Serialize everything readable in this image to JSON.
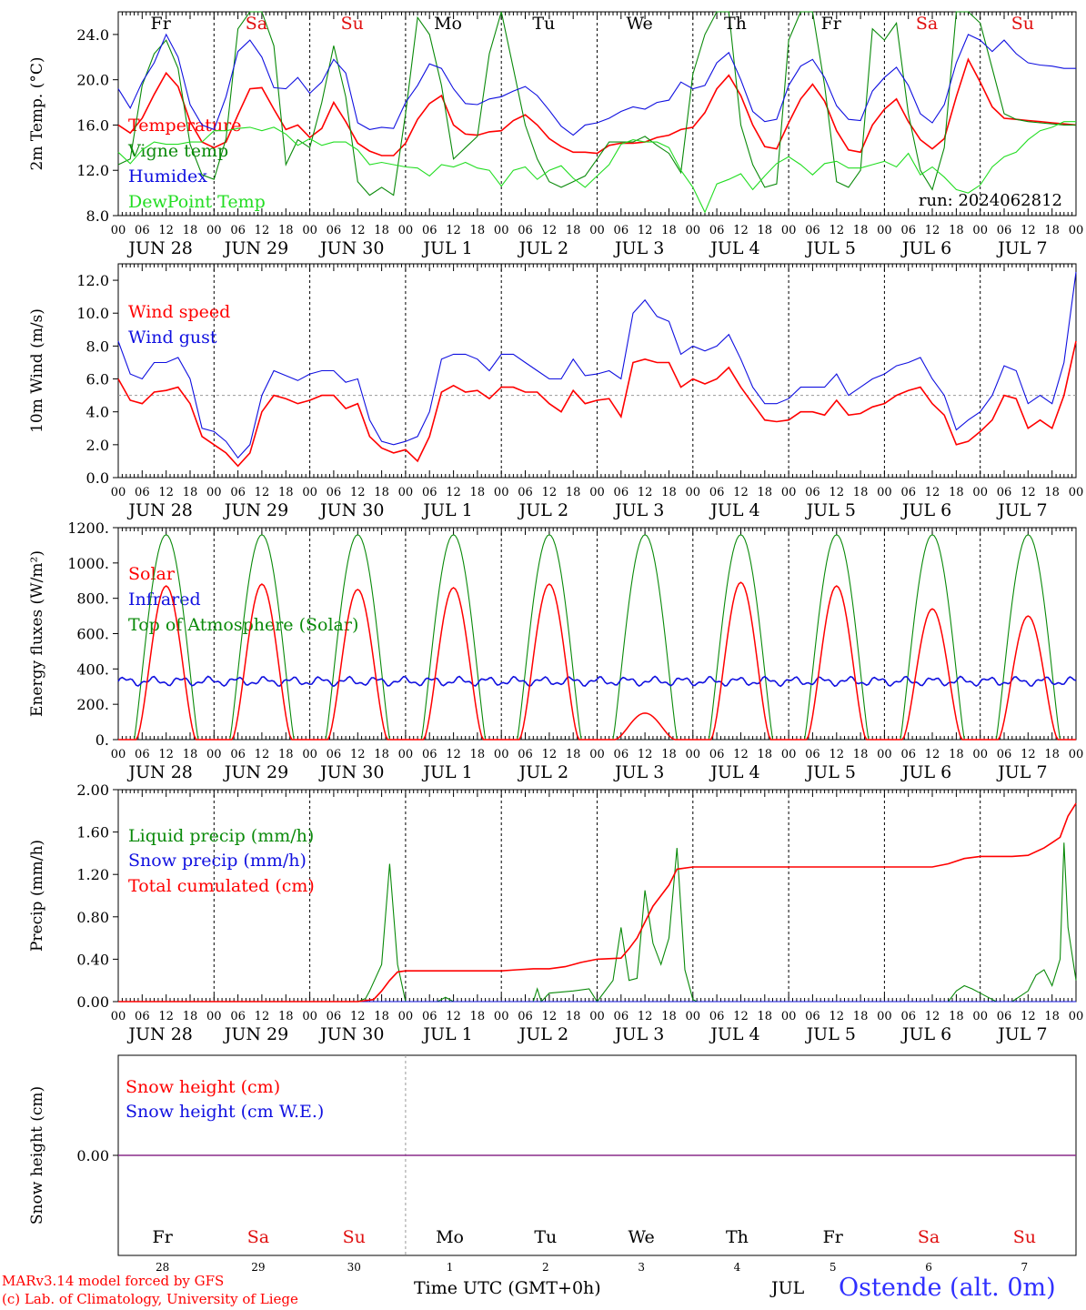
{
  "days": [
    "JUN 28",
    "JUN 29",
    "JUN 30",
    "JUL  1",
    "JUL  2",
    "JUL  3",
    "JUL  4",
    "JUL  5",
    "JUL  6",
    "JUL  7"
  ],
  "weekdays": [
    "Fr",
    "Sa",
    "Su",
    "Mo",
    "Tu",
    "We",
    "Th",
    "Fr",
    "Sa",
    "Su"
  ],
  "weekend_flags": [
    false,
    true,
    true,
    false,
    false,
    false,
    false,
    false,
    true,
    true
  ],
  "hour_labels": [
    "00",
    "06",
    "12",
    "18"
  ],
  "last_hour_label": "00",
  "colors": {
    "weekday": "#000000",
    "weekend": "#e01010",
    "red": "#ff0000",
    "green": "#0a8a0a",
    "blue": "#1010e0",
    "lightgreen": "#22dd22",
    "purple": "#8a2b8a"
  },
  "bottom": {
    "day_numbers": [
      "28",
      "29",
      "30",
      "1",
      "2",
      "3",
      "4",
      "5",
      "6",
      "7"
    ],
    "axis_title": "Time UTC (GMT+0h)",
    "month": "JUL",
    "station": "Ostende (alt. 0m)",
    "credit1": "MARv3.14 model forced by GFS",
    "credit2": "(c) Lab. of Climatology, University of Liege"
  },
  "chart_data": [
    {
      "id": "temp",
      "type": "line",
      "ylabel": "2m Temp. (°C)",
      "ylim": [
        8,
        26
      ],
      "yticks": [
        8,
        12,
        16,
        20,
        24
      ],
      "ytick_labels": [
        "8.0",
        "12.0",
        "16.0",
        "20.0",
        "24.0"
      ],
      "annotation": "run: 2024062812",
      "x_hours": [
        0,
        3,
        6,
        9,
        12,
        15,
        18,
        21,
        24,
        27,
        30,
        33,
        36,
        39,
        42,
        45,
        48,
        51,
        54,
        57,
        60,
        63,
        66,
        69,
        72,
        75,
        78,
        81,
        84,
        87,
        90,
        93,
        96,
        99,
        102,
        105,
        108,
        111,
        114,
        117,
        120,
        123,
        126,
        129,
        132,
        135,
        138,
        141,
        144,
        147,
        150,
        153,
        156,
        159,
        162,
        165,
        168,
        171,
        174,
        177,
        180,
        183,
        186,
        189,
        192,
        195,
        198,
        201,
        204,
        207,
        210,
        213,
        216,
        219,
        222,
        225,
        228,
        231,
        234,
        237,
        240
      ],
      "series": [
        {
          "name": "Temperature",
          "color": "#ff0000",
          "values": [
            16.0,
            15.3,
            16.6,
            18.7,
            20.6,
            19.4,
            16.3,
            14.5,
            14.0,
            14.5,
            16.9,
            19.2,
            19.3,
            17.4,
            15.6,
            16.0,
            14.9,
            15.7,
            18.0,
            16.3,
            14.4,
            13.7,
            13.3,
            13.3,
            14.4,
            16.5,
            17.9,
            18.6,
            16.0,
            15.2,
            15.1,
            15.4,
            15.5,
            16.4,
            16.9,
            16.0,
            14.8,
            14.1,
            13.6,
            13.6,
            13.5,
            14.2,
            14.4,
            14.4,
            14.5,
            14.9,
            15.1,
            15.6,
            15.8,
            17.1,
            19.2,
            20.4,
            18.6,
            16.0,
            14.1,
            13.9,
            16.2,
            18.3,
            19.6,
            18.1,
            15.5,
            13.8,
            13.6,
            16.0,
            17.4,
            18.3,
            16.3,
            14.7,
            13.9,
            14.8,
            18.5,
            21.8,
            19.8,
            17.6,
            16.6,
            16.5,
            16.4,
            16.3,
            16.2,
            16.1,
            16.0
          ]
        },
        {
          "name": "Vigne temp",
          "color": "#0a8a0a",
          "values": [
            12.5,
            13.0,
            19.5,
            22.3,
            23.5,
            21.0,
            14.3,
            11.6,
            11.2,
            14.8,
            24.5,
            26.5,
            26.0,
            23.0,
            12.5,
            14.7,
            14.0,
            18.0,
            23.0,
            18.5,
            11.0,
            9.8,
            10.5,
            9.8,
            17.0,
            25.5,
            24.0,
            19.5,
            13.0,
            14.0,
            15.0,
            22.3,
            27.0,
            21.0,
            16.0,
            13.0,
            11.0,
            10.5,
            11.0,
            11.5,
            13.0,
            14.5,
            14.5,
            14.5,
            15.0,
            14.2,
            13.5,
            11.8,
            20.5,
            24.0,
            27.0,
            26.0,
            16.0,
            12.5,
            10.5,
            10.8,
            23.5,
            28.0,
            27.0,
            19.5,
            11.0,
            10.5,
            12.0,
            24.5,
            23.5,
            25.0,
            17.0,
            12.0,
            10.3,
            14.0,
            27.0,
            28.0,
            25.0,
            21.0,
            17.0,
            16.5,
            16.3,
            16.2,
            16.1,
            16.0,
            16.0
          ]
        },
        {
          "name": "Humidex",
          "color": "#1010e0",
          "values": [
            19.2,
            17.5,
            19.8,
            21.5,
            24.0,
            22.0,
            17.8,
            16.0,
            15.6,
            18.5,
            22.5,
            23.5,
            22.0,
            19.3,
            19.2,
            20.2,
            18.8,
            19.8,
            21.8,
            20.6,
            16.2,
            15.6,
            15.8,
            15.7,
            18.0,
            19.5,
            21.4,
            21.0,
            19.2,
            17.9,
            17.8,
            18.3,
            18.5,
            19.0,
            19.4,
            18.6,
            17.3,
            15.9,
            15.1,
            16.0,
            16.2,
            16.6,
            17.2,
            17.6,
            17.4,
            18.0,
            18.2,
            19.8,
            19.2,
            19.5,
            21.5,
            22.4,
            20.0,
            17.2,
            16.3,
            16.5,
            19.5,
            21.2,
            21.8,
            20.2,
            17.7,
            16.5,
            16.4,
            19.0,
            20.2,
            21.1,
            19.5,
            17.0,
            16.2,
            17.8,
            21.5,
            24.0,
            23.5,
            22.5,
            23.5,
            22.3,
            21.5,
            21.3,
            21.2,
            21.0,
            21.0
          ]
        },
        {
          "name": "DewPoint Temp",
          "color": "#22dd22",
          "values": [
            13.6,
            12.6,
            13.8,
            14.5,
            14.3,
            14.3,
            14.5,
            14.5,
            15.5,
            15.5,
            15.7,
            15.8,
            15.5,
            15.8,
            15.2,
            14.2,
            14.8,
            14.2,
            14.5,
            14.5,
            13.8,
            12.5,
            12.7,
            12.5,
            12.3,
            12.2,
            11.5,
            12.5,
            12.3,
            12.7,
            12.2,
            12.0,
            10.6,
            12.0,
            12.3,
            11.2,
            12.0,
            12.4,
            11.3,
            10.5,
            11.5,
            12.5,
            14.3,
            14.7,
            14.5,
            14.5,
            14.0,
            12.0,
            10.5,
            8.3,
            10.8,
            11.2,
            11.7,
            10.3,
            11.5,
            12.6,
            13.2,
            12.5,
            11.6,
            12.6,
            12.8,
            12.2,
            12.2,
            12.5,
            12.8,
            12.3,
            13.5,
            11.6,
            12.3,
            11.4,
            10.3,
            10.0,
            10.7,
            12.3,
            13.2,
            13.6,
            14.7,
            15.5,
            15.8,
            16.3,
            16.3
          ]
        }
      ]
    },
    {
      "id": "wind",
      "type": "line",
      "ylabel": "10m Wind (m/s)",
      "ylim": [
        0,
        13
      ],
      "yticks": [
        0,
        2,
        4,
        6,
        8,
        10,
        12
      ],
      "ytick_labels": [
        "0.0",
        "2.0",
        "4.0",
        "6.0",
        "8.0",
        "10.0",
        "12.0"
      ],
      "ref_line": 5,
      "x_hours": [
        0,
        3,
        6,
        9,
        12,
        15,
        18,
        21,
        24,
        27,
        30,
        33,
        36,
        39,
        42,
        45,
        48,
        51,
        54,
        57,
        60,
        63,
        66,
        69,
        72,
        75,
        78,
        81,
        84,
        87,
        90,
        93,
        96,
        99,
        102,
        105,
        108,
        111,
        114,
        117,
        120,
        123,
        126,
        129,
        132,
        135,
        138,
        141,
        144,
        147,
        150,
        153,
        156,
        159,
        162,
        165,
        168,
        171,
        174,
        177,
        180,
        183,
        186,
        189,
        192,
        195,
        198,
        201,
        204,
        207,
        210,
        213,
        216,
        219,
        222,
        225,
        228,
        231,
        234,
        237,
        240
      ],
      "series": [
        {
          "name": "Wind speed",
          "color": "#ff0000",
          "values": [
            6.0,
            4.7,
            4.5,
            5.2,
            5.3,
            5.5,
            4.5,
            2.5,
            2.0,
            1.5,
            0.7,
            1.5,
            4.0,
            5.0,
            4.8,
            4.5,
            4.7,
            5.0,
            5.0,
            4.2,
            4.5,
            2.5,
            1.8,
            1.5,
            1.7,
            1.0,
            2.5,
            5.2,
            5.6,
            5.2,
            5.3,
            4.8,
            5.5,
            5.5,
            5.2,
            5.2,
            4.5,
            4.0,
            5.3,
            4.5,
            4.7,
            4.8,
            3.7,
            7.0,
            7.2,
            7.0,
            7.0,
            5.5,
            6.0,
            5.7,
            6.0,
            6.7,
            5.5,
            4.5,
            3.5,
            3.4,
            3.5,
            4.0,
            4.0,
            3.8,
            4.7,
            3.8,
            3.9,
            4.3,
            4.5,
            5.0,
            5.3,
            5.5,
            4.5,
            3.8,
            2.0,
            2.2,
            2.8,
            3.5,
            5.0,
            4.8,
            3.0,
            3.5,
            3.0,
            5.0,
            8.3
          ]
        },
        {
          "name": "Wind gust",
          "color": "#1010e0",
          "values": [
            8.3,
            6.3,
            6.0,
            7.0,
            7.0,
            7.3,
            6.0,
            3.0,
            2.8,
            2.2,
            1.2,
            2.0,
            5.0,
            6.5,
            6.2,
            5.9,
            6.3,
            6.5,
            6.5,
            5.8,
            6.0,
            3.5,
            2.2,
            2.0,
            2.2,
            2.5,
            4.0,
            7.2,
            7.5,
            7.5,
            7.2,
            6.5,
            7.5,
            7.5,
            7.0,
            6.5,
            6.0,
            6.0,
            7.2,
            6.2,
            6.3,
            6.5,
            6.0,
            10.0,
            10.8,
            9.8,
            9.5,
            7.5,
            8.0,
            7.7,
            8.0,
            8.7,
            7.2,
            5.5,
            4.5,
            4.5,
            4.8,
            5.5,
            5.5,
            5.5,
            6.3,
            5.0,
            5.5,
            6.0,
            6.3,
            6.8,
            7.0,
            7.3,
            6.0,
            5.0,
            2.9,
            3.5,
            4.0,
            5.0,
            6.8,
            6.5,
            4.5,
            5.0,
            4.5,
            7.0,
            12.5
          ]
        }
      ]
    },
    {
      "id": "flux",
      "type": "line",
      "ylabel": "Energy fluxes (W/m²)",
      "ylim": [
        0,
        1200
      ],
      "yticks": [
        0,
        200,
        400,
        600,
        800,
        1000,
        1200
      ],
      "ytick_labels": [
        "0.",
        "200.",
        "400.",
        "600.",
        "800.",
        "1000.",
        "1200."
      ],
      "series": [
        {
          "name": "Solar",
          "color": "#ff0000"
        },
        {
          "name": "Infrared",
          "color": "#1010e0"
        },
        {
          "name": "Top of Atmosphere (Solar)",
          "color": "#0a8a0a"
        }
      ],
      "toa_peak": 1160,
      "solar_peaks": [
        870,
        880,
        850,
        860,
        880,
        150,
        890,
        870,
        740,
        700
      ],
      "infrared_mean": 330
    },
    {
      "id": "precip",
      "type": "line",
      "ylabel": "Precip (mm/h)",
      "ylim": [
        0,
        2.0
      ],
      "yticks": [
        0,
        0.4,
        0.8,
        1.2,
        1.6,
        2.0
      ],
      "ytick_labels": [
        "0.00",
        "0.40",
        "0.80",
        "1.20",
        "1.60",
        "2.00"
      ],
      "series": [
        {
          "name": "Liquid precip (mm/h)",
          "color": "#0a8a0a",
          "x_hours": [
            0,
            60,
            62,
            63,
            66,
            68,
            70,
            72,
            80,
            82,
            84,
            104,
            105,
            106,
            108,
            114,
            118,
            120,
            124,
            126,
            128,
            130,
            132,
            134,
            136,
            138,
            140,
            142,
            144,
            145,
            208,
            210,
            212,
            214,
            216,
            220,
            224,
            228,
            230,
            232,
            234,
            236,
            237,
            238,
            240
          ],
          "values": [
            0,
            0,
            0.03,
            0.1,
            0.35,
            1.3,
            0.35,
            0,
            0,
            0.04,
            0,
            0,
            0.12,
            0,
            0.08,
            0.1,
            0.12,
            0,
            0.2,
            0.7,
            0.2,
            0.22,
            1.05,
            0.55,
            0.35,
            0.6,
            1.45,
            0.3,
            0.02,
            0,
            0,
            0.1,
            0.15,
            0.12,
            0.08,
            0,
            0,
            0.1,
            0.25,
            0.3,
            0.15,
            0.4,
            1.5,
            0.7,
            0.2
          ]
        },
        {
          "name": "Snow precip (mm/h)",
          "color": "#1010e0",
          "x_hours": [
            0,
            240
          ],
          "values": [
            0,
            0
          ]
        },
        {
          "name": "Total cumulated (cm)",
          "color": "#ff0000",
          "x_hours": [
            0,
            60,
            64,
            66,
            68,
            70,
            72,
            96,
            100,
            104,
            108,
            112,
            116,
            120,
            126,
            128,
            130,
            132,
            134,
            136,
            138,
            140,
            144,
            204,
            208,
            212,
            216,
            224,
            228,
            232,
            234,
            236,
            238,
            240
          ],
          "values": [
            0,
            0,
            0.02,
            0.1,
            0.2,
            0.28,
            0.29,
            0.29,
            0.3,
            0.31,
            0.31,
            0.33,
            0.37,
            0.4,
            0.41,
            0.5,
            0.6,
            0.75,
            0.9,
            1.0,
            1.1,
            1.25,
            1.27,
            1.27,
            1.3,
            1.35,
            1.37,
            1.37,
            1.38,
            1.45,
            1.5,
            1.55,
            1.75,
            1.87
          ]
        }
      ]
    },
    {
      "id": "snow",
      "type": "line",
      "ylabel": "Snow height (cm)",
      "ylim": [
        -1,
        1
      ],
      "yticks": [
        0
      ],
      "ytick_labels": [
        "0.00"
      ],
      "series": [
        {
          "name": "Snow height (cm)",
          "color": "#ff0000",
          "x_hours": [
            0,
            240
          ],
          "values": [
            0,
            0
          ]
        },
        {
          "name": "Snow height (cm W.E.)",
          "color": "#1010e0",
          "x_hours": [
            0,
            240
          ],
          "values": [
            0,
            0
          ]
        }
      ]
    }
  ]
}
